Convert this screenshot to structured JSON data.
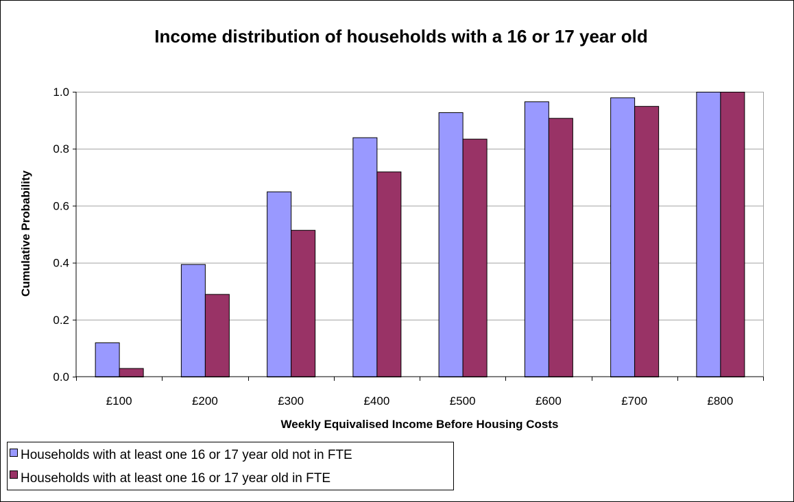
{
  "chart_data": {
    "type": "bar",
    "title": "Income distribution of households with a 16 or 17 year old",
    "xlabel": "Weekly Equivalised Income Before Housing Costs",
    "ylabel": "Cumulative Probability",
    "categories": [
      "£100",
      "£200",
      "£300",
      "£400",
      "£500",
      "£600",
      "£700",
      "£800"
    ],
    "yticks": [
      "0.0",
      "0.2",
      "0.4",
      "0.6",
      "0.8",
      "1.0"
    ],
    "ylim": [
      0,
      1.0
    ],
    "grid": true,
    "legend_position": "bottom-left",
    "series": [
      {
        "name": "Households with at least one 16 or 17 year old not in FTE",
        "color": "#9999ff",
        "values": [
          0.12,
          0.395,
          0.65,
          0.84,
          0.928,
          0.966,
          0.98,
          1.0
        ]
      },
      {
        "name": "Households with at least one 16 or 17 year old in FTE",
        "color": "#993366",
        "values": [
          0.03,
          0.29,
          0.515,
          0.72,
          0.835,
          0.908,
          0.95,
          1.0
        ]
      }
    ]
  }
}
